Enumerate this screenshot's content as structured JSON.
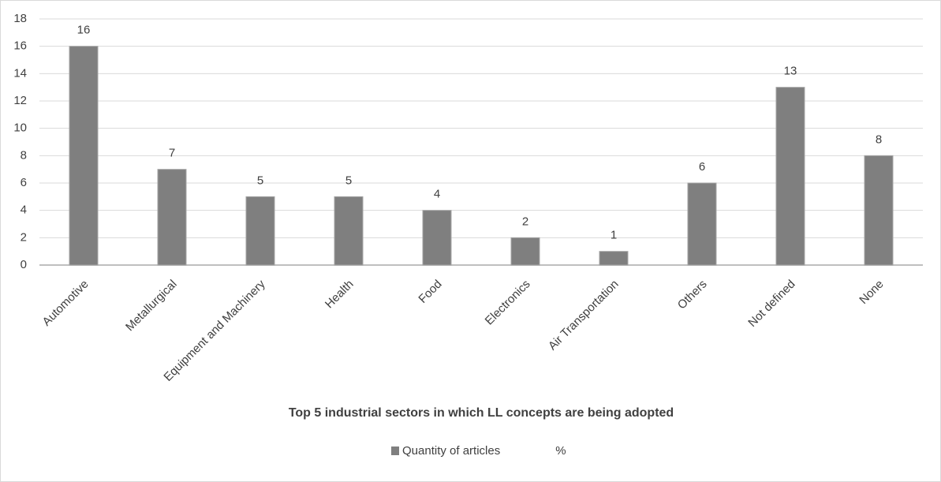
{
  "chart_data": {
    "type": "bar",
    "x_label": "Top 5 industrial sectors in which LL concepts are being adopted",
    "categories": [
      "Automotive",
      "Metallurgical",
      "Equipment and Machinery",
      "Health",
      "Food",
      "Electronics",
      "Air Transportation",
      "Others",
      "Not defined",
      "None"
    ],
    "series": [
      {
        "name": "Quantity of articles",
        "color": "#7f7f7f",
        "values": [
          16,
          7,
          5,
          5,
          4,
          2,
          1,
          6,
          13,
          8
        ]
      },
      {
        "name": "%",
        "values": [
          null,
          null,
          null,
          null,
          null,
          null,
          null,
          null,
          null,
          null
        ]
      }
    ],
    "ylim": [
      0,
      18
    ],
    "yticks": [
      0,
      2,
      4,
      6,
      8,
      10,
      12,
      14,
      16,
      18
    ],
    "grid": true,
    "legend": "bottom"
  }
}
